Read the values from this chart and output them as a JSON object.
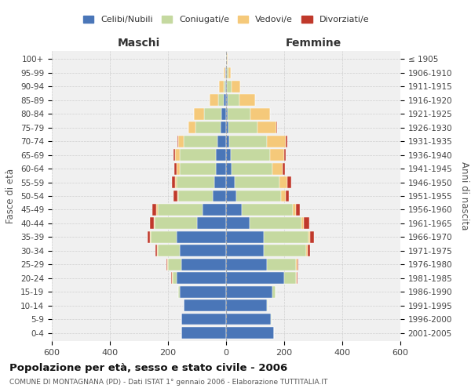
{
  "age_groups": [
    "0-4",
    "5-9",
    "10-14",
    "15-19",
    "20-24",
    "25-29",
    "30-34",
    "35-39",
    "40-44",
    "45-49",
    "50-54",
    "55-59",
    "60-64",
    "65-69",
    "70-74",
    "75-79",
    "80-84",
    "85-89",
    "90-94",
    "95-99",
    "100+"
  ],
  "birth_years": [
    "2001-2005",
    "1996-2000",
    "1991-1995",
    "1986-1990",
    "1981-1985",
    "1976-1980",
    "1971-1975",
    "1966-1970",
    "1961-1965",
    "1956-1960",
    "1951-1955",
    "1946-1950",
    "1941-1945",
    "1936-1940",
    "1931-1935",
    "1926-1930",
    "1921-1925",
    "1916-1920",
    "1911-1915",
    "1906-1910",
    "≤ 1905"
  ],
  "colors": {
    "celibe": "#4a76b8",
    "coniugato": "#c5d9a0",
    "vedovo": "#f5c97a",
    "divorziato": "#c0392b"
  },
  "maschi": {
    "celibe": [
      155,
      155,
      145,
      160,
      170,
      155,
      160,
      170,
      100,
      80,
      45,
      40,
      35,
      35,
      30,
      20,
      15,
      8,
      3,
      2,
      0
    ],
    "coniugato": [
      0,
      0,
      0,
      5,
      15,
      45,
      75,
      90,
      145,
      155,
      120,
      130,
      125,
      125,
      115,
      85,
      60,
      20,
      5,
      2,
      0
    ],
    "vedovo": [
      0,
      0,
      0,
      0,
      2,
      3,
      2,
      2,
      3,
      5,
      3,
      5,
      10,
      15,
      20,
      25,
      35,
      30,
      15,
      3,
      0
    ],
    "divorziato": [
      0,
      0,
      0,
      0,
      2,
      3,
      5,
      8,
      13,
      14,
      12,
      12,
      8,
      5,
      3,
      0,
      0,
      0,
      0,
      0,
      0
    ]
  },
  "femmine": {
    "nubile": [
      165,
      155,
      140,
      160,
      200,
      140,
      130,
      130,
      80,
      55,
      35,
      30,
      20,
      15,
      10,
      8,
      5,
      5,
      3,
      2,
      0
    ],
    "coniugata": [
      0,
      2,
      3,
      10,
      40,
      100,
      145,
      155,
      180,
      175,
      155,
      155,
      140,
      135,
      130,
      100,
      80,
      40,
      15,
      5,
      2
    ],
    "vedova": [
      0,
      0,
      0,
      0,
      3,
      5,
      5,
      5,
      8,
      10,
      15,
      25,
      35,
      50,
      65,
      65,
      65,
      55,
      30,
      10,
      3
    ],
    "divorziata": [
      0,
      0,
      0,
      0,
      2,
      3,
      8,
      12,
      18,
      15,
      12,
      15,
      8,
      5,
      5,
      3,
      2,
      0,
      0,
      0,
      0
    ]
  },
  "xlim": 600,
  "title": "Popolazione per età, sesso e stato civile - 2006",
  "subtitle": "COMUNE DI MONTAGNANA (PD) - Dati ISTAT 1° gennaio 2006 - Elaborazione TUTTITALIA.IT",
  "xlabel_left": "Maschi",
  "xlabel_right": "Femmine",
  "ylabel_left": "Fasce di età",
  "ylabel_right": "Anni di nascita",
  "bg_color": "#f0f0f0",
  "grid_color": "#cccccc"
}
